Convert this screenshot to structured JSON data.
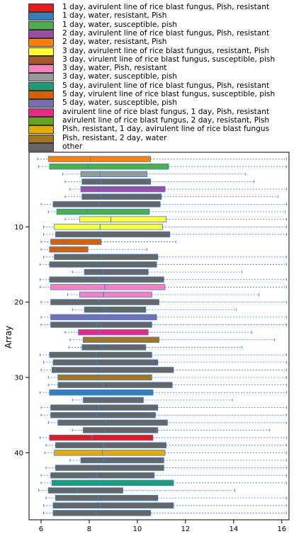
{
  "chart_data": {
    "type": "boxplot",
    "orientation": "horizontal",
    "ylabel": "Array",
    "xlabel": "",
    "xlim": [
      5.5,
      16.3
    ],
    "xticks": [
      6,
      8,
      10,
      12,
      14,
      16
    ],
    "yticks": [
      10,
      20,
      30,
      40
    ],
    "legend": [
      {
        "label": "1 day, avirulent line of rice blast fungus, Pish, resistant",
        "color": "#e41a1c"
      },
      {
        "label": "1 day, water, resistant, Pish",
        "color": "#377eb8"
      },
      {
        "label": "1 day, water, susceptible, pish",
        "color": "#4daf4a"
      },
      {
        "label": "2 day, avirulent line of rice blast fungus, Pish, resistant",
        "color": "#984ea3"
      },
      {
        "label": "2 day, water, resistant, Pish",
        "color": "#ff7f00"
      },
      {
        "label": "3 day, avirulent line of rice blast fungus, resistant, Pish",
        "color": "#ffff33"
      },
      {
        "label": "3 day, virulent line of rice blast fungus, susceptible, pish",
        "color": "#a65628"
      },
      {
        "label": "3 day, water, Pish, resistant",
        "color": "#f781bf"
      },
      {
        "label": "3 day, water, susceptible, pish",
        "color": "#999999"
      },
      {
        "label": "5 day, avirulent line of rice blast fungus, Pish, resistant",
        "color": "#1b9e77"
      },
      {
        "label": "5 day, virulent line of rice blast fungus, susceptible, pish",
        "color": "#d95f02"
      },
      {
        "label": "5 day, water, susceptible, pish",
        "color": "#7570b3"
      },
      {
        "label": "avirulent line of rice blast fungus, 1 day, Pish, resistant",
        "color": "#e7298a"
      },
      {
        "label": "avirulent line of rice blast fungus, 2 day, resistant, Pish",
        "color": "#66a61e"
      },
      {
        "label": "Pish, resistant, 1 day, avirulent line of rice blast fungus",
        "color": "#e6ab02"
      },
      {
        "label": "Pish, resistant, 2 day, water",
        "color": "#a6761d"
      },
      {
        "label": "other",
        "color": "#666666"
      }
    ],
    "series": [
      {
        "array": 1,
        "group": 4,
        "q1": 6.3,
        "median": 8.05,
        "q3": 10.55,
        "min": 5.85,
        "max": 16.2
      },
      {
        "array": 2,
        "group": 2,
        "q1": 6.35,
        "median": 7.95,
        "q3": 11.3,
        "min": 5.9,
        "max": 16.2
      },
      {
        "array": 3,
        "group": 8,
        "q1": 7.65,
        "median": 8.45,
        "q3": 10.4,
        "min": 6.9,
        "max": 14.5
      },
      {
        "array": 4,
        "group": 16,
        "q1": 7.7,
        "median": 8.5,
        "q3": 10.55,
        "min": 7.0,
        "max": 14.85
      },
      {
        "array": 5,
        "group": 3,
        "q1": 7.65,
        "median": 8.5,
        "q3": 11.15,
        "min": 7.2,
        "max": 16.2
      },
      {
        "array": 6,
        "group": 16,
        "q1": 7.7,
        "median": 8.5,
        "q3": 11.0,
        "min": 7.0,
        "max": 15.85
      },
      {
        "array": 7,
        "group": 16,
        "q1": 6.5,
        "median": 8.4,
        "q3": 10.95,
        "min": 6.0,
        "max": 16.2
      },
      {
        "array": 8,
        "group": 2,
        "q1": 6.65,
        "median": 7.9,
        "q3": 10.5,
        "min": 6.3,
        "max": 16.15
      },
      {
        "array": 9,
        "group": 5,
        "q1": 7.6,
        "median": 8.9,
        "q3": 11.2,
        "min": 7.0,
        "max": 16.2
      },
      {
        "array": 10,
        "group": 5,
        "q1": 6.55,
        "median": 8.45,
        "q3": 11.05,
        "min": 6.1,
        "max": 16.2
      },
      {
        "array": 11,
        "group": 16,
        "q1": 6.6,
        "median": 8.5,
        "q3": 11.35,
        "min": 6.1,
        "max": 16.2
      },
      {
        "array": 12,
        "group": 10,
        "q1": 6.4,
        "median": 6.95,
        "q3": 8.5,
        "min": 6.0,
        "max": 11.6
      },
      {
        "array": 13,
        "group": 10,
        "q1": 6.35,
        "median": 6.7,
        "q3": 7.95,
        "min": 6.0,
        "max": 10.4
      },
      {
        "array": 14,
        "group": 16,
        "q1": 6.55,
        "median": 8.5,
        "q3": 10.85,
        "min": 6.1,
        "max": 16.2
      },
      {
        "array": 15,
        "group": 16,
        "q1": 6.35,
        "median": 8.3,
        "q3": 10.8,
        "min": 5.95,
        "max": 16.2
      },
      {
        "array": 16,
        "group": 16,
        "q1": 7.8,
        "median": 8.6,
        "q3": 10.45,
        "min": 7.3,
        "max": 14.35
      },
      {
        "array": 17,
        "group": 16,
        "q1": 6.35,
        "median": 8.4,
        "q3": 11.1,
        "min": 5.95,
        "max": 16.2
      },
      {
        "array": 18,
        "group": 7,
        "q1": 6.4,
        "median": 8.65,
        "q3": 11.15,
        "min": 5.95,
        "max": 16.2
      },
      {
        "array": 19,
        "group": 7,
        "q1": 7.6,
        "median": 8.6,
        "q3": 10.6,
        "min": 7.1,
        "max": 15.05
      },
      {
        "array": 20,
        "group": 16,
        "q1": 6.4,
        "median": 8.4,
        "q3": 10.9,
        "min": 6.0,
        "max": 16.2
      },
      {
        "array": 21,
        "group": 16,
        "q1": 7.8,
        "median": 8.6,
        "q3": 10.35,
        "min": 7.3,
        "max": 14.1
      },
      {
        "array": 22,
        "group": 11,
        "q1": 6.4,
        "median": 8.3,
        "q3": 10.8,
        "min": 6.0,
        "max": 16.2
      },
      {
        "array": 23,
        "group": 16,
        "q1": 6.4,
        "median": 8.3,
        "q3": 10.6,
        "min": 6.0,
        "max": 16.2
      },
      {
        "array": 24,
        "group": 12,
        "q1": 7.55,
        "median": 8.4,
        "q3": 10.45,
        "min": 7.0,
        "max": 14.75
      },
      {
        "array": 25,
        "group": 15,
        "q1": 7.75,
        "median": 8.6,
        "q3": 10.9,
        "min": 7.2,
        "max": 15.7
      },
      {
        "array": 26,
        "group": 16,
        "q1": 7.7,
        "median": 8.5,
        "q3": 10.35,
        "min": 7.15,
        "max": 14.35
      },
      {
        "array": 27,
        "group": 16,
        "q1": 6.35,
        "median": 8.3,
        "q3": 10.6,
        "min": 5.95,
        "max": 16.2
      },
      {
        "array": 28,
        "group": 16,
        "q1": 6.5,
        "median": 8.3,
        "q3": 10.85,
        "min": 6.1,
        "max": 16.2
      },
      {
        "array": 29,
        "group": 16,
        "q1": 6.45,
        "median": 8.5,
        "q3": 11.5,
        "min": 6.0,
        "max": 16.2
      },
      {
        "array": 30,
        "group": 15,
        "q1": 6.7,
        "median": 8.35,
        "q3": 10.6,
        "min": 6.3,
        "max": 16.2
      },
      {
        "array": 31,
        "group": 16,
        "q1": 6.7,
        "median": 8.6,
        "q3": 11.45,
        "min": 6.3,
        "max": 16.2
      },
      {
        "array": 32,
        "group": 1,
        "q1": 6.35,
        "median": 8.0,
        "q3": 10.65,
        "min": 5.95,
        "max": 16.2
      },
      {
        "array": 33,
        "group": 16,
        "q1": 7.75,
        "median": 8.55,
        "q3": 10.25,
        "min": 7.3,
        "max": 13.95
      },
      {
        "array": 34,
        "group": 16,
        "q1": 6.4,
        "median": 8.4,
        "q3": 10.85,
        "min": 6.0,
        "max": 16.2
      },
      {
        "array": 35,
        "group": 16,
        "q1": 6.4,
        "median": 8.3,
        "q3": 10.75,
        "min": 6.0,
        "max": 16.2
      },
      {
        "array": 36,
        "group": 16,
        "q1": 6.7,
        "median": 8.7,
        "q3": 11.25,
        "min": 6.3,
        "max": 16.2
      },
      {
        "array": 37,
        "group": 16,
        "q1": 7.75,
        "median": 8.65,
        "q3": 10.85,
        "min": 7.3,
        "max": 15.5
      },
      {
        "array": 38,
        "group": 0,
        "q1": 6.35,
        "median": 8.1,
        "q3": 10.65,
        "min": 5.95,
        "max": 16.2
      },
      {
        "array": 39,
        "group": 16,
        "q1": 6.6,
        "median": 8.6,
        "q3": 11.2,
        "min": 6.2,
        "max": 16.2
      },
      {
        "array": 40,
        "group": 14,
        "q1": 6.55,
        "median": 8.55,
        "q3": 11.15,
        "min": 6.15,
        "max": 16.2
      },
      {
        "array": 41,
        "group": 16,
        "q1": 7.65,
        "median": 8.6,
        "q3": 11.1,
        "min": 7.2,
        "max": 16.2
      },
      {
        "array": 42,
        "group": 16,
        "q1": 6.6,
        "median": 8.5,
        "q3": 11.1,
        "min": 6.2,
        "max": 16.2
      },
      {
        "array": 43,
        "group": 16,
        "q1": 6.4,
        "median": 8.3,
        "q3": 10.7,
        "min": 6.0,
        "max": 16.2
      },
      {
        "array": 44,
        "group": 9,
        "q1": 6.45,
        "median": 8.5,
        "q3": 11.5,
        "min": 6.0,
        "max": 16.2
      },
      {
        "array": 45,
        "group": 16,
        "q1": 6.3,
        "median": 7.5,
        "q3": 9.4,
        "min": 5.9,
        "max": 14.05
      },
      {
        "array": 46,
        "group": 16,
        "q1": 6.6,
        "median": 8.4,
        "q3": 10.85,
        "min": 6.2,
        "max": 16.2
      },
      {
        "array": 47,
        "group": 16,
        "q1": 6.5,
        "median": 8.45,
        "q3": 11.5,
        "min": 6.1,
        "max": 16.2
      },
      {
        "array": 48,
        "group": 16,
        "q1": 6.5,
        "median": 8.3,
        "q3": 10.55,
        "min": 6.1,
        "max": 16.2
      }
    ]
  }
}
